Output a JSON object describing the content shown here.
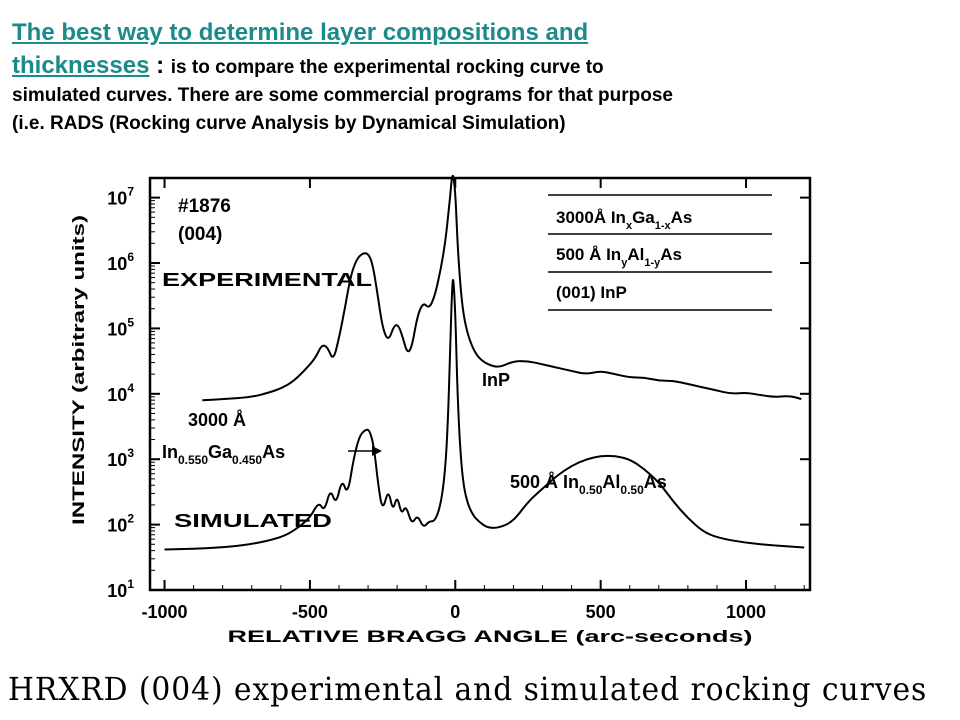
{
  "intro": {
    "link_line1": "The best way to determine layer  compositions and",
    "link_line2": "thicknesses",
    "colon": " : ",
    "text1": "is to compare the experimental rocking curve to",
    "text2": "simulated curves. There are some commercial programs for that purpose",
    "text3": "(i.e. RADS (Rocking curve Analysis by Dynamical Simulation)"
  },
  "caption": "HRXRD (004) experimental and simulated rocking curves",
  "chart_data": {
    "type": "line",
    "title": "",
    "xlabel": "RELATIVE BRAGG ANGLE (arc-seconds)",
    "ylabel": "INTENSITY (arbitrary units)",
    "xlim": [
      -1050,
      1220
    ],
    "ylim_log10": [
      1,
      7.3
    ],
    "y_scale": "log",
    "x_ticks": [
      -1000,
      -500,
      0,
      500,
      1000
    ],
    "x_tick_labels": [
      "-1000",
      "-500",
      "0",
      "500",
      "1000"
    ],
    "y_ticks_exponent": [
      1,
      2,
      3,
      4,
      5,
      6,
      7
    ],
    "y_tick_base": "10",
    "grid": false,
    "series": [
      {
        "name": "EXPERIMENTAL",
        "x": [
          -870,
          -800,
          -700,
          -640,
          -600,
          -560,
          -520,
          -480,
          -460,
          -440,
          -420,
          -400,
          -380,
          -360,
          -340,
          -320,
          -300,
          -285,
          -270,
          -250,
          -230,
          -210,
          -195,
          -180,
          -165,
          -150,
          -130,
          -110,
          -90,
          -70,
          -50,
          -35,
          -25,
          -18,
          -12,
          -8,
          -4,
          0,
          4,
          8,
          15,
          25,
          40,
          60,
          80,
          110,
          150,
          200,
          250,
          300,
          350,
          400,
          450,
          500,
          550,
          600,
          650,
          700,
          750,
          800,
          850,
          900,
          950,
          1000,
          1050,
          1100,
          1150,
          1190
        ],
        "y": [
          3.9,
          3.92,
          3.95,
          4.02,
          4.08,
          4.18,
          4.35,
          4.55,
          4.75,
          4.72,
          4.5,
          4.85,
          5.3,
          5.8,
          6.05,
          6.15,
          6.15,
          6.0,
          5.6,
          5.0,
          4.8,
          5.05,
          5.05,
          4.85,
          4.62,
          4.7,
          5.2,
          5.4,
          5.3,
          5.5,
          5.9,
          6.3,
          6.7,
          7.0,
          7.3,
          7.35,
          7.25,
          7.05,
          6.7,
          6.3,
          5.8,
          5.3,
          4.95,
          4.7,
          4.55,
          4.45,
          4.4,
          4.5,
          4.5,
          4.45,
          4.4,
          4.35,
          4.3,
          4.35,
          4.3,
          4.25,
          4.25,
          4.2,
          4.2,
          4.15,
          4.1,
          4.05,
          4.0,
          4.02,
          3.98,
          3.95,
          3.97,
          3.92
        ]
      },
      {
        "name": "SIMULATED",
        "x": [
          -1000,
          -900,
          -800,
          -700,
          -600,
          -550,
          -500,
          -470,
          -450,
          -430,
          -410,
          -390,
          -370,
          -350,
          -330,
          -310,
          -295,
          -280,
          -265,
          -250,
          -230,
          -215,
          -200,
          -185,
          -170,
          -150,
          -130,
          -110,
          -90,
          -70,
          -50,
          -35,
          -25,
          -18,
          -12,
          -8,
          -4,
          0,
          4,
          8,
          15,
          25,
          40,
          60,
          80,
          110,
          150,
          200,
          250,
          300,
          350,
          400,
          450,
          500,
          550,
          600,
          650,
          700,
          750,
          800,
          850,
          900,
          1000,
          1100,
          1200
        ],
        "y": [
          1.62,
          1.63,
          1.65,
          1.7,
          1.8,
          1.92,
          2.1,
          2.35,
          2.2,
          2.55,
          2.3,
          2.7,
          2.45,
          3.0,
          3.35,
          3.45,
          3.45,
          3.2,
          2.6,
          2.2,
          2.55,
          2.2,
          2.45,
          2.15,
          2.3,
          2.0,
          2.15,
          1.95,
          2.05,
          2.05,
          2.3,
          2.8,
          3.6,
          4.6,
          5.5,
          5.8,
          5.6,
          5.2,
          4.6,
          4.0,
          3.3,
          2.7,
          2.35,
          2.15,
          2.05,
          1.95,
          1.95,
          2.05,
          2.35,
          2.55,
          2.75,
          2.9,
          3.0,
          3.05,
          3.05,
          3.0,
          2.85,
          2.65,
          2.35,
          2.1,
          1.9,
          1.8,
          1.72,
          1.68,
          1.65
        ]
      }
    ],
    "labels": {
      "sample": "#1876",
      "reflection": "(004)",
      "experimental": "EXPERIMENTAL",
      "simulated": "SIMULATED",
      "inp_peak": "InP",
      "ingaas_thickness": "3000 Å",
      "ingaas_In": "In",
      "ingaas_x": "0.550",
      "ingaas_Ga": "Ga",
      "ingaas_1mx": "0.450",
      "ingaas_As": "As",
      "inalas_prefix": "500 Å In",
      "inalas_y": "0.50",
      "inalas_Al": "Al",
      "inalas_1my": "0.50",
      "inalas_As": "As"
    },
    "legend_table": {
      "rows": [
        {
          "a": "3000Å  In",
          "b": "x",
          "c": "Ga",
          "d": "1-x",
          "e": "As"
        },
        {
          "a": "500  Å  In",
          "b": "y",
          "c": "Al",
          "d": "1-y",
          "e": "As"
        },
        {
          "a": "(001) InP",
          "b": "",
          "c": "",
          "d": "",
          "e": ""
        }
      ]
    }
  }
}
